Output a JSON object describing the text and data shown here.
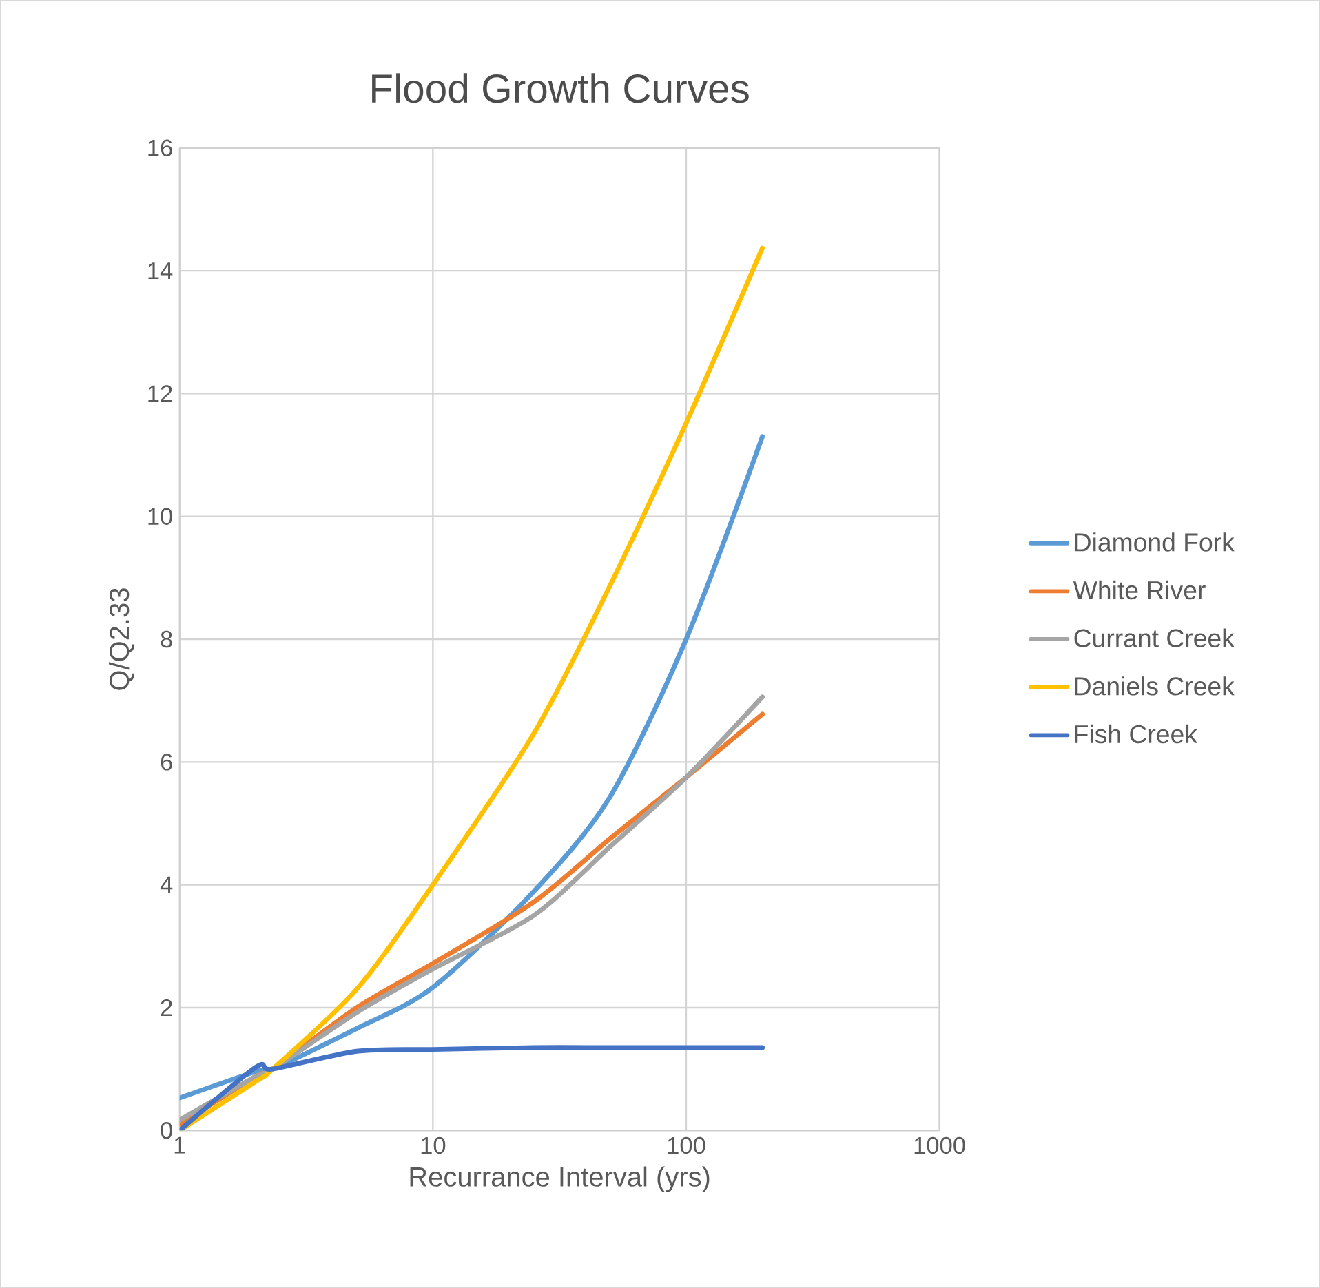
{
  "chart_data": {
    "type": "line",
    "title": "Flood Growth Curves",
    "xlabel": "Recurrance Interval (yrs)",
    "ylabel": "Q/Q2.33",
    "log": "x",
    "xlim": [
      1,
      1000
    ],
    "xticks": [
      1,
      10,
      100,
      1000
    ],
    "ylim": [
      0,
      16
    ],
    "yticks": [
      0,
      2,
      4,
      6,
      8,
      10,
      12,
      14,
      16
    ],
    "grid": true,
    "legend": "right",
    "x": [
      1,
      2,
      2.33,
      5,
      10,
      25,
      50,
      100,
      200
    ],
    "series": [
      {
        "name": "Diamond Fork",
        "color": "#5b9bd5",
        "values": [
          0.53,
          0.96,
          1.0,
          1.66,
          2.33,
          3.89,
          5.43,
          8.0,
          11.3
        ]
      },
      {
        "name": "White River",
        "color": "#ed7d31",
        "values": [
          0.1,
          0.88,
          1.0,
          2.0,
          2.72,
          3.72,
          4.75,
          5.75,
          6.78
        ]
      },
      {
        "name": "Currant Creek",
        "color": "#a5a5a5",
        "values": [
          0.17,
          0.88,
          1.0,
          1.92,
          2.63,
          3.5,
          4.62,
          5.75,
          7.06
        ]
      },
      {
        "name": "Daniels Creek",
        "color": "#ffc000",
        "values": [
          0.0,
          0.8,
          1.0,
          2.3,
          4.0,
          6.46,
          8.87,
          11.52,
          14.37
        ]
      },
      {
        "name": "Fish Creek",
        "color": "#4472c4",
        "values": [
          0.0,
          1.03,
          1.0,
          1.29,
          1.32,
          1.35,
          1.35,
          1.35,
          1.35
        ]
      }
    ]
  }
}
